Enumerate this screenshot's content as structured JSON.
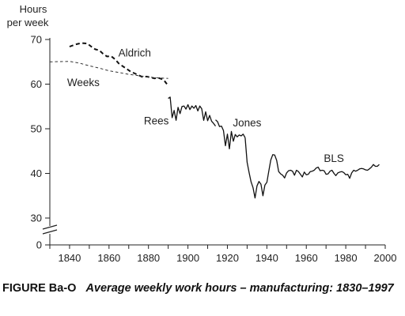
{
  "chart_data": {
    "type": "line",
    "ylabel_lines": [
      "Hours",
      "per week"
    ],
    "xlabel": "",
    "xlim": [
      1830,
      2000
    ],
    "ylim": [
      30,
      70
    ],
    "axis_break": true,
    "x_ticks": [
      1840,
      1860,
      1880,
      1900,
      1920,
      1940,
      1960,
      1980,
      2000
    ],
    "y_ticks": [
      30,
      40,
      50,
      60,
      70
    ],
    "y_zero_label": "0",
    "grid": false,
    "series": [
      {
        "name": "Aldrich",
        "style": "dashed-bold",
        "points": [
          [
            1840,
            68.4
          ],
          [
            1843,
            68.9
          ],
          [
            1846,
            69.2
          ],
          [
            1849,
            69.1
          ],
          [
            1851,
            68.4
          ],
          [
            1853,
            67.8
          ],
          [
            1855,
            67.6
          ],
          [
            1857,
            66.8
          ],
          [
            1859,
            66.2
          ],
          [
            1861,
            66.3
          ],
          [
            1863,
            65.6
          ],
          [
            1865,
            64.6
          ],
          [
            1867,
            64.0
          ],
          [
            1869,
            63.4
          ],
          [
            1871,
            62.8
          ],
          [
            1873,
            62.4
          ],
          [
            1875,
            62.0
          ],
          [
            1877,
            61.6
          ],
          [
            1879,
            61.7
          ],
          [
            1881,
            61.5
          ],
          [
            1883,
            61.3
          ],
          [
            1885,
            61.4
          ],
          [
            1887,
            61.1
          ],
          [
            1888,
            60.8
          ],
          [
            1889,
            60.2
          ],
          [
            1890,
            59.8
          ]
        ]
      },
      {
        "name": "Weeks",
        "style": "dashed-thin",
        "points": [
          [
            1830,
            65.0
          ],
          [
            1840,
            65.1
          ],
          [
            1845,
            64.7
          ],
          [
            1850,
            64.1
          ],
          [
            1855,
            63.6
          ],
          [
            1860,
            63.0
          ],
          [
            1865,
            62.6
          ],
          [
            1870,
            62.2
          ],
          [
            1875,
            61.9
          ],
          [
            1880,
            61.6
          ],
          [
            1885,
            61.4
          ],
          [
            1890,
            61.3
          ]
        ]
      },
      {
        "name": "Rees",
        "style": "solid",
        "points": [
          [
            1890,
            56.8
          ],
          [
            1891,
            57.1
          ],
          [
            1892,
            52.5
          ],
          [
            1893,
            54.1
          ],
          [
            1894,
            51.9
          ],
          [
            1895,
            54.8
          ],
          [
            1896,
            53.4
          ],
          [
            1897,
            55.0
          ],
          [
            1898,
            55.1
          ],
          [
            1899,
            54.4
          ],
          [
            1900,
            55.4
          ],
          [
            1901,
            54.3
          ],
          [
            1902,
            55.1
          ],
          [
            1903,
            54.6
          ],
          [
            1904,
            55.2
          ],
          [
            1905,
            54.0
          ],
          [
            1906,
            55.1
          ],
          [
            1907,
            54.5
          ],
          [
            1908,
            51.9
          ],
          [
            1909,
            53.8
          ],
          [
            1910,
            51.8
          ],
          [
            1911,
            53.0
          ],
          [
            1912,
            51.7
          ],
          [
            1913,
            51.2
          ],
          [
            1914,
            50.6
          ]
        ]
      },
      {
        "name": "Jones",
        "style": "solid",
        "points": [
          [
            1914,
            52.0
          ],
          [
            1915,
            51.6
          ],
          [
            1916,
            50.5
          ],
          [
            1917,
            50.6
          ],
          [
            1918,
            49.6
          ],
          [
            1919,
            46.2
          ],
          [
            1920,
            48.8
          ],
          [
            1921,
            45.5
          ],
          [
            1922,
            49.4
          ],
          [
            1923,
            47.2
          ],
          [
            1924,
            48.7
          ],
          [
            1925,
            48.2
          ],
          [
            1926,
            48.6
          ],
          [
            1927,
            48.4
          ],
          [
            1928,
            48.8
          ],
          [
            1929,
            48.0
          ]
        ]
      },
      {
        "name": "BLS",
        "style": "solid",
        "points": [
          [
            1929,
            48.0
          ],
          [
            1930,
            42.5
          ],
          [
            1931,
            40.2
          ],
          [
            1932,
            38.1
          ],
          [
            1933,
            36.8
          ],
          [
            1934,
            34.5
          ],
          [
            1935,
            37.2
          ],
          [
            1936,
            38.2
          ],
          [
            1937,
            37.6
          ],
          [
            1938,
            35.0
          ],
          [
            1939,
            37.4
          ],
          [
            1940,
            38.0
          ],
          [
            1941,
            40.5
          ],
          [
            1942,
            43.0
          ],
          [
            1943,
            44.2
          ],
          [
            1944,
            44.1
          ],
          [
            1945,
            42.9
          ],
          [
            1946,
            40.4
          ],
          [
            1947,
            39.9
          ],
          [
            1948,
            39.6
          ],
          [
            1949,
            39.0
          ],
          [
            1950,
            40.1
          ],
          [
            1951,
            40.6
          ],
          [
            1952,
            40.7
          ],
          [
            1953,
            40.5
          ],
          [
            1954,
            39.6
          ],
          [
            1955,
            40.7
          ],
          [
            1956,
            40.4
          ],
          [
            1957,
            39.8
          ],
          [
            1958,
            39.2
          ],
          [
            1959,
            40.3
          ],
          [
            1960,
            39.7
          ],
          [
            1961,
            39.8
          ],
          [
            1962,
            40.4
          ],
          [
            1963,
            40.5
          ],
          [
            1964,
            40.7
          ],
          [
            1965,
            41.2
          ],
          [
            1966,
            41.4
          ],
          [
            1967,
            40.6
          ],
          [
            1968,
            40.7
          ],
          [
            1969,
            40.6
          ],
          [
            1970,
            39.8
          ],
          [
            1971,
            39.9
          ],
          [
            1972,
            40.5
          ],
          [
            1973,
            40.7
          ],
          [
            1974,
            40.0
          ],
          [
            1975,
            39.5
          ],
          [
            1976,
            40.1
          ],
          [
            1977,
            40.3
          ],
          [
            1978,
            40.4
          ],
          [
            1979,
            40.2
          ],
          [
            1980,
            39.7
          ],
          [
            1981,
            39.8
          ],
          [
            1982,
            38.9
          ],
          [
            1983,
            40.1
          ],
          [
            1984,
            40.7
          ],
          [
            1985,
            40.5
          ],
          [
            1986,
            40.7
          ],
          [
            1987,
            41.0
          ],
          [
            1988,
            41.1
          ],
          [
            1989,
            41.0
          ],
          [
            1990,
            40.8
          ],
          [
            1991,
            40.7
          ],
          [
            1992,
            41.0
          ],
          [
            1993,
            41.4
          ],
          [
            1994,
            42.0
          ],
          [
            1995,
            41.6
          ],
          [
            1996,
            41.6
          ],
          [
            1997,
            42.0
          ]
        ]
      }
    ]
  },
  "caption": {
    "figure_id": "FIGURE Ba-O",
    "title": "Average weekly work hours – manufacturing: 1830–1997"
  }
}
